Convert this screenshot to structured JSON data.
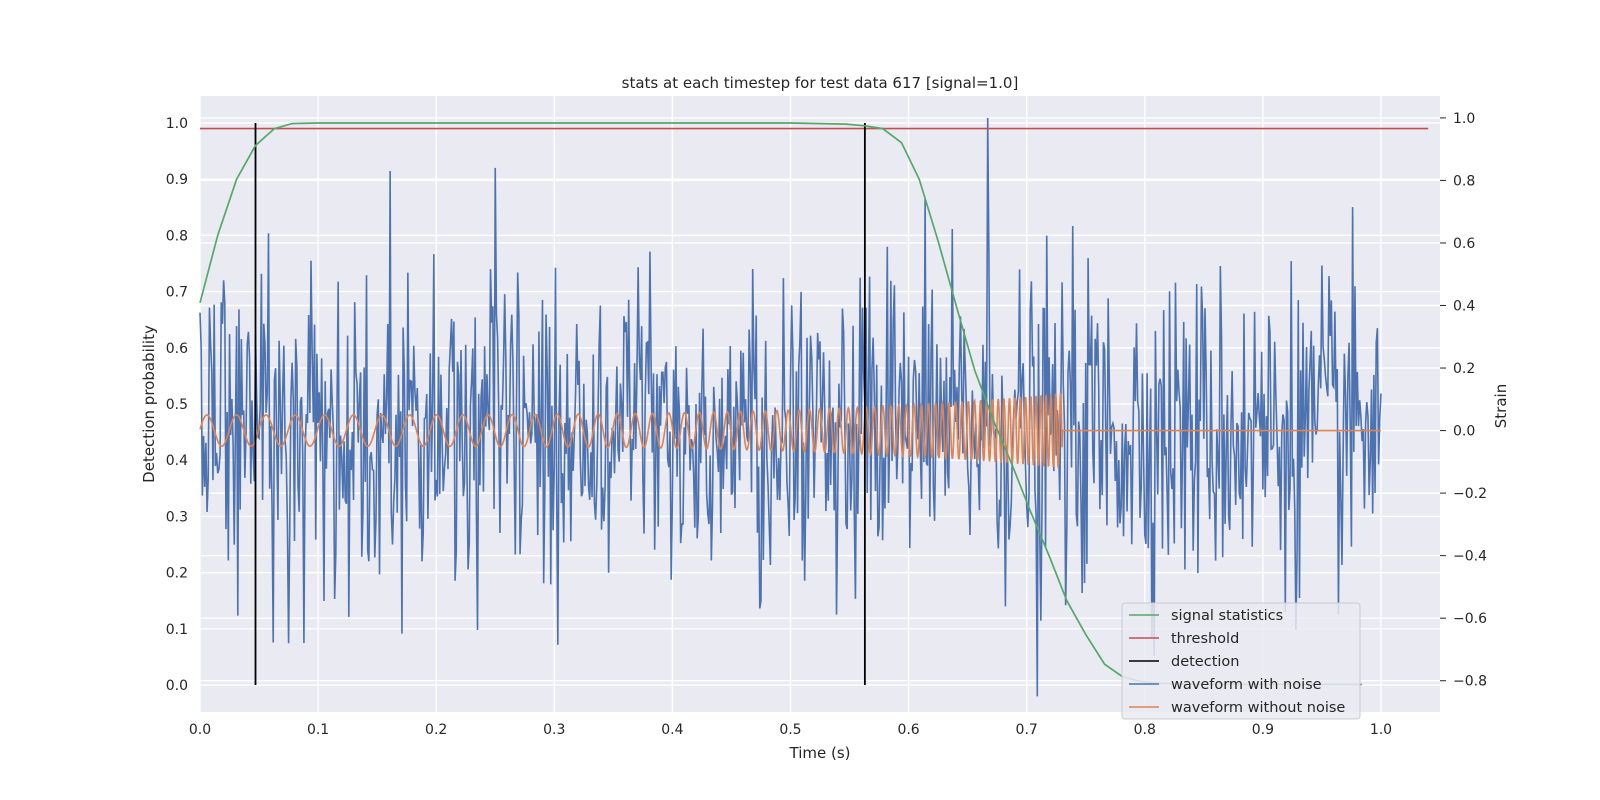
{
  "chart_data": {
    "type": "line",
    "title": "stats at each timestep for test data 617 [signal=1.0]",
    "xlabel": "Time (s)",
    "ylabel": "Detection probability",
    "y2label": "Strain",
    "xlim": [
      0.0,
      1.05
    ],
    "ylim": [
      -0.048,
      1.048
    ],
    "y2lim": [
      -0.9,
      1.07
    ],
    "x_ticks": [
      "0.0",
      "0.1",
      "0.2",
      "0.3",
      "0.4",
      "0.5",
      "0.6",
      "0.7",
      "0.8",
      "0.9",
      "1.0"
    ],
    "y_ticks": [
      "0.0",
      "0.1",
      "0.2",
      "0.3",
      "0.4",
      "0.5",
      "0.6",
      "0.7",
      "0.8",
      "0.9",
      "1.0"
    ],
    "y2_ticks": [
      "−0.8",
      "−0.6",
      "−0.4",
      "−0.2",
      "0.0",
      "0.2",
      "0.4",
      "0.6",
      "0.8",
      "1.0"
    ],
    "grid": true,
    "legend_position": "lower right",
    "colors": {
      "signal_statistics": "#55a868",
      "threshold": "#c44e52",
      "detection": "#000000",
      "waveform_with_noise": "#4c72b0",
      "waveform_without_noise": "#dd8452",
      "plot_background": "#eaeaf2"
    },
    "series": [
      {
        "name": "signal statistics",
        "axis": "left",
        "x": [
          0.0,
          0.015,
          0.031,
          0.047,
          0.063,
          0.078,
          0.1,
          0.2,
          0.3,
          0.4,
          0.5,
          0.547,
          0.563,
          0.578,
          0.594,
          0.609,
          0.625,
          0.641,
          0.656,
          0.672,
          0.688,
          0.703,
          0.719,
          0.734,
          0.75,
          0.766,
          0.781,
          0.797,
          0.813,
          0.828,
          0.844,
          0.86,
          0.875,
          0.9,
          0.95,
          0.984
        ],
        "y": [
          0.68,
          0.8,
          0.9,
          0.96,
          0.99,
          0.999,
          1.0,
          1.0,
          1.0,
          1.0,
          1.0,
          0.998,
          0.995,
          0.99,
          0.965,
          0.9,
          0.79,
          0.67,
          0.56,
          0.47,
          0.39,
          0.31,
          0.23,
          0.15,
          0.09,
          0.037,
          0.015,
          0.006,
          0.003,
          0.002,
          0.001,
          0.001,
          0.001,
          0.001,
          0.001,
          0.001
        ]
      },
      {
        "name": "threshold",
        "axis": "left",
        "x": [
          0.0,
          1.04
        ],
        "y": [
          0.99,
          0.99
        ]
      },
      {
        "name": "detection",
        "axis": "left",
        "x_positions": [
          0.047,
          0.563
        ],
        "y": [
          0.0,
          1.0
        ]
      },
      {
        "name": "waveform with noise",
        "axis": "right",
        "x_range": [
          0.0,
          1.0
        ],
        "description_values": "white noise, std about 0.25 strain, peak 1.0 near t=0.667, minimum -0.85 near t=0.71",
        "peaks": [
          {
            "x": 0.667,
            "y": 1.0
          },
          {
            "x": 0.709,
            "y": -0.85
          },
          {
            "x": 0.161,
            "y": 0.83
          },
          {
            "x": 0.25,
            "y": 0.84
          },
          {
            "x": 0.075,
            "y": -0.68
          }
        ]
      },
      {
        "name": "waveform without noise",
        "axis": "right",
        "x_range": [
          0.0,
          1.0
        ],
        "chirp_end": 0.73,
        "start_amplitude": 0.05,
        "end_amplitude": 0.12,
        "start_frequency_hz": 40,
        "end_frequency_hz": 250
      }
    ],
    "legend": [
      "signal statistics",
      "threshold",
      "detection",
      "waveform with noise",
      "waveform without noise"
    ]
  }
}
